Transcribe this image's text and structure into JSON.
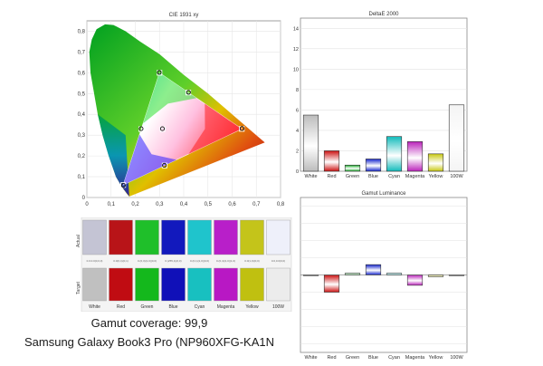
{
  "cie": {
    "title": "CIE 1931 xy",
    "x_ticks": [
      "0",
      "0,1",
      "0,2",
      "0,3",
      "0,4",
      "0,5",
      "0,6",
      "0,7",
      "0,8"
    ],
    "y_ticks": [
      "0,8",
      "0,7",
      "0,6",
      "0,5",
      "0,4",
      "0,3",
      "0,2",
      "0,1",
      "0"
    ]
  },
  "deltae": {
    "title": "DeltaE 2000",
    "y_ticks": [
      "14",
      "12",
      "10",
      "8",
      "6",
      "4",
      "2",
      "0"
    ]
  },
  "luminance": {
    "title": "Gamut Luminance"
  },
  "swatches": {
    "row_actual": "Actual",
    "row_target": "Target",
    "codes": [
      "0.0.0.0(0,0,0)",
      "0.0(0,4)(0,1)",
      "0.(0,3)(1,0)(0,0)",
      "0.(255,1)(0,0)",
      "0.(0,1)(1,0)(0,0)",
      "0.(0,4)(1,0)(1,0)",
      "0.0(1,0)(0,0)",
      "0.0,0.0(0,0)"
    ],
    "labels": [
      "White",
      "Red",
      "Green",
      "Blue",
      "Cyan",
      "Magenta",
      "Yellow",
      "100W"
    ]
  },
  "captions": {
    "coverage": "Gamut coverage: 99,9",
    "device": "Samsung Galaxy Book3 Pro (NP960XFG-KA1N"
  },
  "chart_data": [
    {
      "type": "scatter",
      "title": "CIE 1931 xy",
      "xlim": [
        0,
        0.8
      ],
      "ylim": [
        0,
        0.85
      ],
      "series": [
        {
          "name": "Target",
          "points": [
            [
              0.64,
              0.33
            ],
            [
              0.3,
              0.6
            ],
            [
              0.15,
              0.06
            ],
            [
              0.225,
              0.329
            ],
            [
              0.321,
              0.154
            ],
            [
              0.419,
              0.505
            ],
            [
              0.3127,
              0.329
            ]
          ]
        },
        {
          "name": "Actual",
          "points": [
            [
              0.641,
              0.332
            ],
            [
              0.299,
              0.602
            ],
            [
              0.151,
              0.058
            ],
            [
              0.224,
              0.331
            ],
            [
              0.32,
              0.155
            ],
            [
              0.42,
              0.506
            ],
            [
              0.312,
              0.331
            ]
          ]
        }
      ]
    },
    {
      "type": "bar",
      "title": "DeltaE 2000",
      "categories": [
        "White",
        "Red",
        "Green",
        "Blue",
        "Cyan",
        "Magenta",
        "Yellow",
        "100W"
      ],
      "values": [
        5.5,
        2.0,
        0.6,
        1.2,
        3.4,
        2.9,
        1.7,
        6.5
      ],
      "colors": [
        "#bcbcbc",
        "#cc1111",
        "#11aa22",
        "#1122cc",
        "#11bbbb",
        "#bb22bb",
        "#c8c810",
        "#f4f4f4"
      ],
      "ylim": [
        0,
        15
      ],
      "grid": true
    },
    {
      "type": "bar",
      "title": "Gamut Luminance",
      "categories": [
        "White",
        "Red",
        "Green",
        "Blue",
        "Cyan",
        "Magenta",
        "Yellow",
        "100W"
      ],
      "values": [
        0,
        -1.0,
        0.1,
        0.6,
        0.1,
        -0.6,
        -0.1,
        0
      ],
      "colors": [
        "#bcbcbc",
        "#cc1111",
        "#11aa22",
        "#1122cc",
        "#11bbbb",
        "#bb22bb",
        "#c8c810",
        "#f4f4f4"
      ],
      "ylim": [
        -4.5,
        4.5
      ],
      "grid": true
    }
  ],
  "swatch_colors": {
    "actual": [
      "#c4c4d4",
      "#b81418",
      "#1fbf2a",
      "#1219bd",
      "#1fc4cc",
      "#b81fc9",
      "#c4c41a",
      "#eef0fa"
    ],
    "target": [
      "#c0c0c0",
      "#c00c12",
      "#14b81c",
      "#1010b8",
      "#18c0c0",
      "#b818c4",
      "#c0c010",
      "#ececec"
    ]
  }
}
